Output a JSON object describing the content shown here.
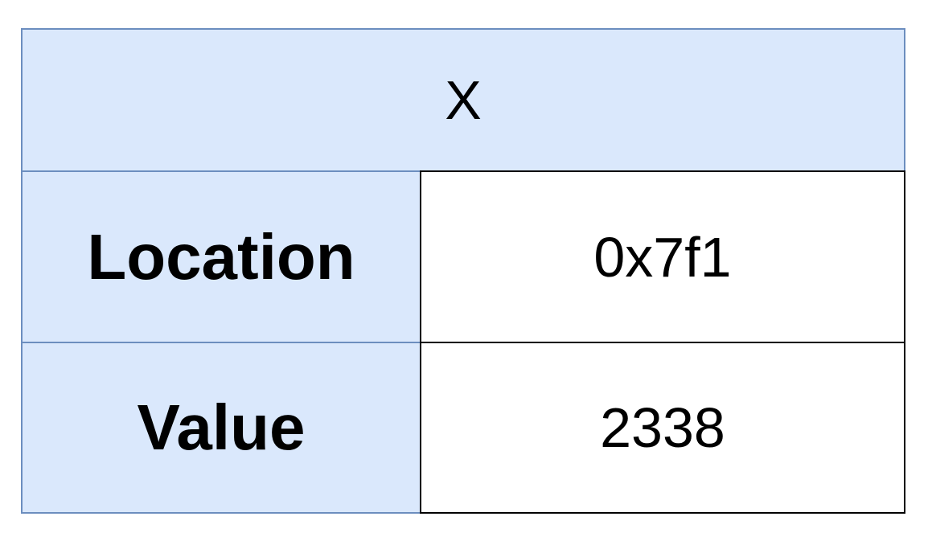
{
  "variable": {
    "name": "X",
    "fields": [
      {
        "label": "Location",
        "value": "0x7f1"
      },
      {
        "label": "Value",
        "value": "2338"
      }
    ]
  },
  "colors": {
    "label_fill": "#dae8fc",
    "label_border": "#6c8ebf",
    "value_fill": "#ffffff",
    "value_border": "#000000"
  }
}
